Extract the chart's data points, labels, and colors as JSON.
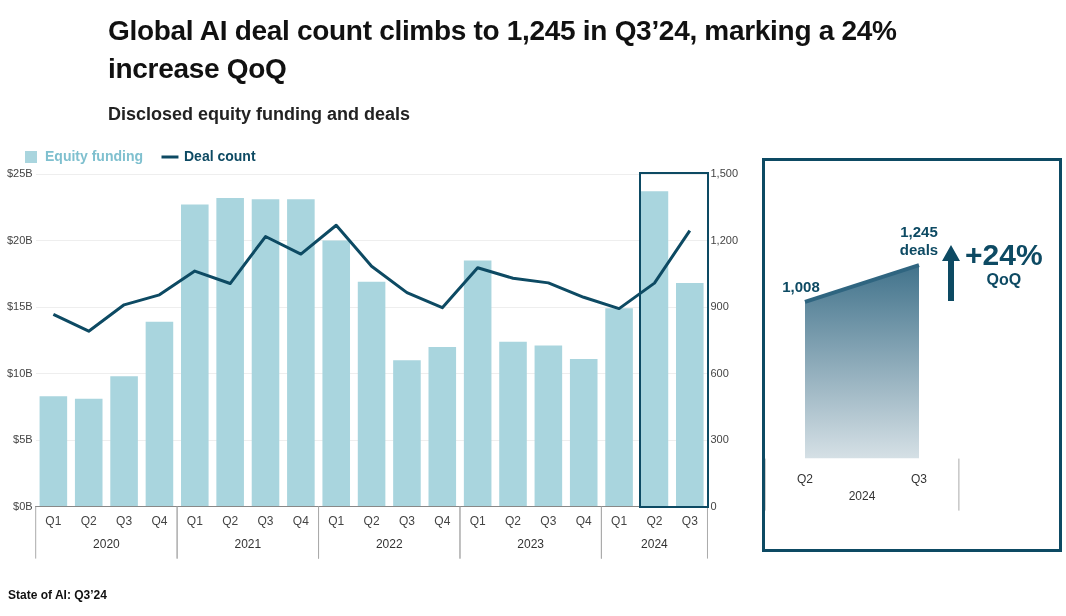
{
  "chart_data": [
    {
      "type": "bar",
      "title": "Global AI deal count climbs to 1,245 in Q3’24, marking a 24% increase QoQ",
      "subtitle": "Disclosed equity funding and deals",
      "categories": [
        "Q1",
        "Q2",
        "Q3",
        "Q4",
        "Q1",
        "Q2",
        "Q3",
        "Q4",
        "Q1",
        "Q2",
        "Q3",
        "Q4",
        "Q1",
        "Q2",
        "Q3",
        "Q4",
        "Q1",
        "Q2",
        "Q3"
      ],
      "series": [
        {
          "name": "Equity funding",
          "type": "bar",
          "color": "#a9d5de",
          "values": [
            8.3,
            8.1,
            9.8,
            13.9,
            22.7,
            23.2,
            23.1,
            23.1,
            20.0,
            16.9,
            11.0,
            12.0,
            18.5,
            12.4,
            12.1,
            11.1,
            14.9,
            23.7,
            16.8
          ]
        },
        {
          "name": "Deal count",
          "type": "line",
          "axis": "y2",
          "color": "#0d4a63",
          "values": [
            867,
            791,
            910,
            955,
            1062,
            1006,
            1218,
            1139,
            1269,
            1084,
            965,
            897,
            1077,
            1030,
            1009,
            944,
            893,
            1008,
            1245
          ]
        }
      ],
      "ylim": [
        0,
        25
      ],
      "yticks": [
        {
          "value": 0,
          "label": "$0B"
        },
        {
          "value": 5,
          "label": "$5B"
        },
        {
          "value": 10,
          "label": "$10B"
        },
        {
          "value": 15,
          "label": "$15B"
        },
        {
          "value": 20,
          "label": "$20B"
        },
        {
          "value": 25,
          "label": "$25B"
        }
      ],
      "y2lim": [
        0,
        1500
      ],
      "y2ticks": [
        0,
        300,
        600,
        900,
        {
          "value": 1200,
          "label": "1,200"
        },
        {
          "value": 1500,
          "label": "1,500"
        }
      ],
      "grid": "y",
      "legend": "top left",
      "marker": "none",
      "line_style": "solid",
      "annotations": [
        "2020",
        "2021",
        "2022",
        "2023",
        "2024",
        "State of AI: Q3’24"
      ]
    },
    {
      "type": "area",
      "categories": [
        "Q2",
        "Q3"
      ],
      "series": [
        {
          "color": "#2f6580",
          "values": [
            1008,
            1245
          ],
          "value_labels": [
            "1,008",
            "1,245 deals"
          ]
        }
      ],
      "tick_labels": "x",
      "marker": "none",
      "annotations": [
        "2024",
        "+24% QoQ"
      ]
    }
  ]
}
